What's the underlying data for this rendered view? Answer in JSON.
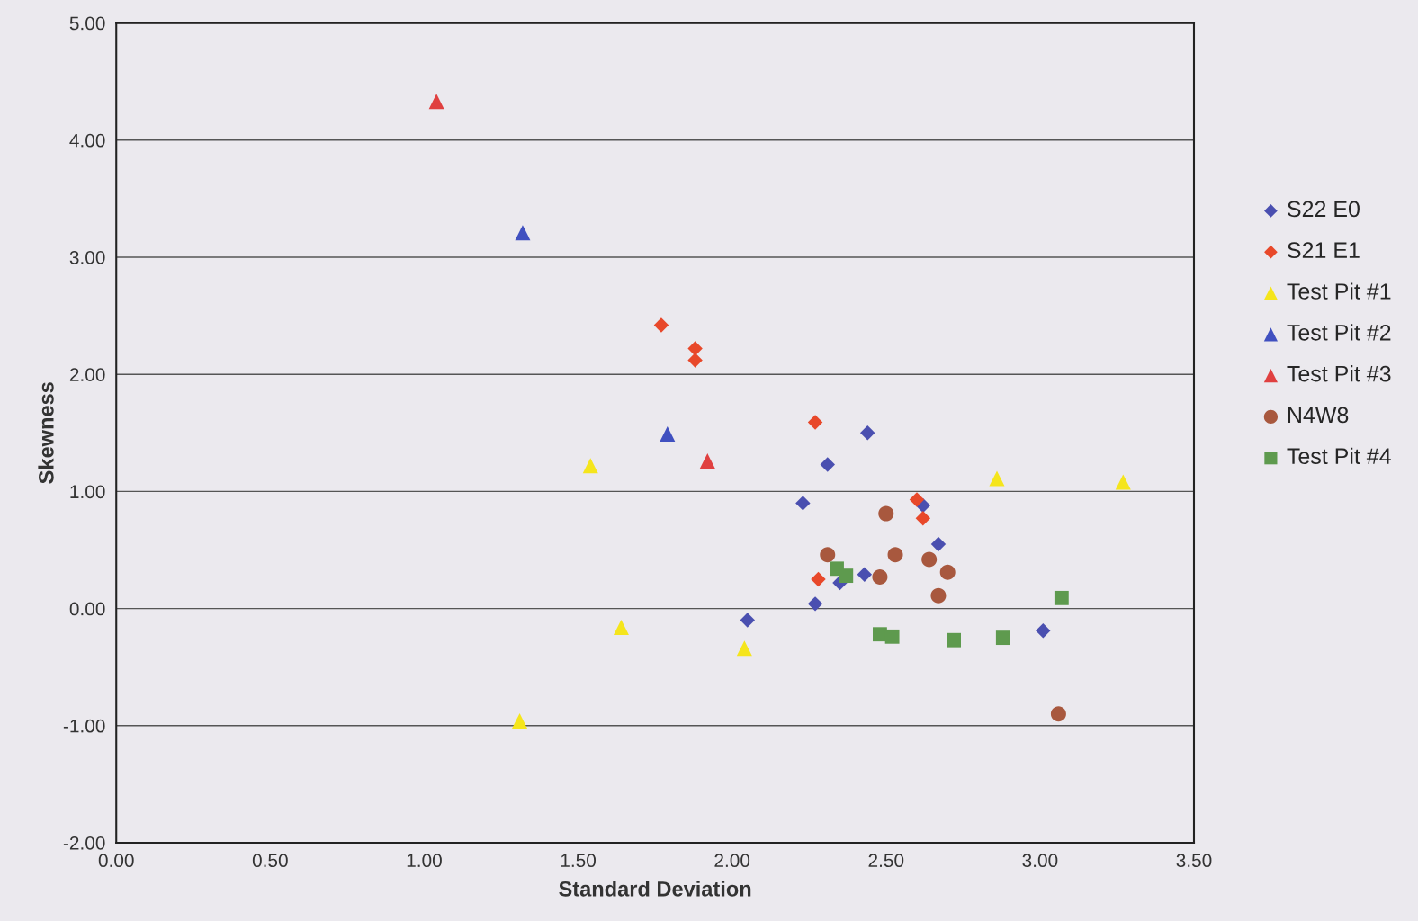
{
  "chart_data": {
    "type": "scatter",
    "xlabel": "Standard Deviation",
    "ylabel": "Skewness",
    "xlim": [
      0,
      3.5
    ],
    "xticks": [
      {
        "value": 0,
        "label": "0.00"
      },
      {
        "value": 0.5,
        "label": "0.50"
      },
      {
        "value": 1,
        "label": "1.00"
      },
      {
        "value": 1.5,
        "label": "1.50"
      },
      {
        "value": 2,
        "label": "2.00"
      },
      {
        "value": 2.5,
        "label": "2.50"
      },
      {
        "value": 3,
        "label": "3.00"
      },
      {
        "value": 3.5,
        "label": "3.50"
      }
    ],
    "ylim": [
      -2,
      5
    ],
    "yticks": [
      {
        "value": -2,
        "label": "-2.00"
      },
      {
        "value": -1,
        "label": "-1.00"
      },
      {
        "value": 0,
        "label": "0.00"
      },
      {
        "value": 1,
        "label": "1.00"
      },
      {
        "value": 2,
        "label": "2.00"
      },
      {
        "value": 3,
        "label": "3.00"
      },
      {
        "value": 4,
        "label": "4.00"
      },
      {
        "value": 5,
        "label": "5.00"
      }
    ],
    "grid": "y",
    "legend": "right",
    "series": [
      {
        "name": "S22 E0",
        "color": "#4a4fb0",
        "marker": "diamond",
        "x": [
          2.31,
          2.44,
          2.23,
          2.62,
          2.67,
          2.35,
          2.43,
          2.27,
          2.05,
          3.01
        ],
        "values": [
          1.23,
          1.5,
          0.9,
          0.88,
          0.55,
          0.22,
          0.29,
          0.04,
          -0.1,
          -0.19
        ]
      },
      {
        "name": "S21 E1",
        "color": "#e8482a",
        "marker": "diamond",
        "x": [
          1.77,
          1.88,
          1.88,
          2.27,
          2.6,
          2.62,
          2.28
        ],
        "values": [
          2.42,
          2.22,
          2.12,
          1.59,
          0.93,
          0.77,
          0.25
        ]
      },
      {
        "name": "Test Pit #1",
        "color": "#f5e51c",
        "marker": "triangle",
        "x": [
          1.54,
          2.86,
          3.27,
          1.64,
          2.04,
          1.31
        ],
        "values": [
          1.22,
          1.11,
          1.08,
          -0.16,
          -0.34,
          -0.96
        ]
      },
      {
        "name": "Test Pit #2",
        "color": "#4050c0",
        "marker": "triangle",
        "x": [
          1.32,
          1.79
        ],
        "values": [
          3.21,
          1.49
        ]
      },
      {
        "name": "Test Pit #3",
        "color": "#e04040",
        "marker": "triangle",
        "x": [
          1.04,
          1.92
        ],
        "values": [
          4.33,
          1.26
        ]
      },
      {
        "name": "N4W8",
        "color": "#a8583e",
        "marker": "circle",
        "x": [
          2.5,
          2.31,
          2.53,
          2.64,
          2.48,
          2.7,
          2.67,
          3.06
        ],
        "values": [
          0.81,
          0.46,
          0.46,
          0.42,
          0.27,
          0.31,
          0.11,
          -0.9
        ]
      },
      {
        "name": "Test Pit #4",
        "color": "#5e9a4e",
        "marker": "square",
        "x": [
          2.34,
          2.37,
          3.07,
          2.48,
          2.52,
          2.72,
          2.88
        ],
        "values": [
          0.34,
          0.28,
          0.09,
          -0.22,
          -0.24,
          -0.27,
          -0.25
        ]
      }
    ]
  }
}
